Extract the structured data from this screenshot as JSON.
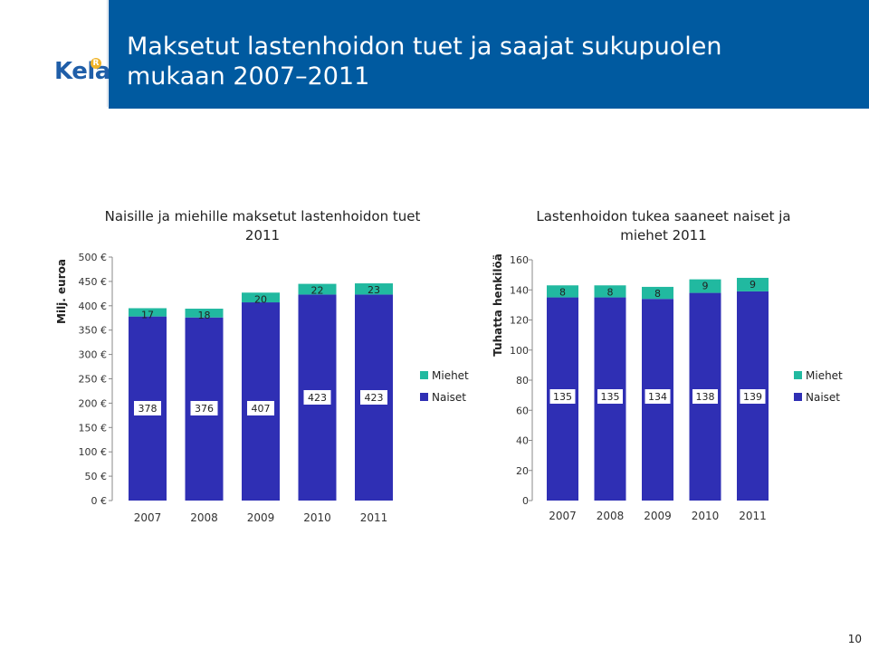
{
  "header": {
    "logo_text": "Kela",
    "logo_mark": "R",
    "title_line1": "Maksetut lastenhoidon tuet ja saajat sukupuolen",
    "title_line2": "mukaan 2007–2011"
  },
  "page_number": "10",
  "colors": {
    "title_bar": "#005aa0",
    "miehet": "#21b9a0",
    "naiset": "#2f2fb4"
  },
  "chart_data": [
    {
      "type": "bar",
      "stacked": true,
      "title_line1": "Naisille ja miehille maksetut lastenhoidon tuet",
      "title_line2": "2011",
      "ylabel": "Milj. euroa",
      "xlabel": "",
      "categories": [
        "2007",
        "2008",
        "2009",
        "2010",
        "2011"
      ],
      "ylim": [
        0,
        500
      ],
      "yticks": [
        0,
        50,
        100,
        150,
        200,
        250,
        300,
        350,
        400,
        450,
        500
      ],
      "ytick_labels": [
        "0 €",
        "50 €",
        "100 €",
        "150 €",
        "200 €",
        "250 €",
        "300 €",
        "350 €",
        "400 €",
        "450 €",
        "500 €"
      ],
      "series": [
        {
          "name": "Naiset",
          "values": [
            378,
            376,
            407,
            423,
            423
          ]
        },
        {
          "name": "Miehet",
          "values": [
            17,
            18,
            20,
            22,
            23
          ]
        }
      ],
      "legend": [
        "Miehet",
        "Naiset"
      ],
      "legend_position": "right",
      "grid": false
    },
    {
      "type": "bar",
      "stacked": true,
      "title_line1": "Lastenhoidon tukea saaneet naiset ja",
      "title_line2": "miehet 2011",
      "ylabel": "Tuhatta henkilöä",
      "xlabel": "",
      "categories": [
        "2007",
        "2008",
        "2009",
        "2010",
        "2011"
      ],
      "ylim": [
        0,
        160
      ],
      "yticks": [
        0,
        20,
        40,
        60,
        80,
        100,
        120,
        140,
        160
      ],
      "ytick_labels": [
        "0",
        "20",
        "40",
        "60",
        "80",
        "100",
        "120",
        "140",
        "160"
      ],
      "series": [
        {
          "name": "Naiset",
          "values": [
            135,
            135,
            134,
            138,
            139
          ]
        },
        {
          "name": "Miehet",
          "values": [
            8,
            8,
            8,
            9,
            9
          ]
        }
      ],
      "legend": [
        "Miehet",
        "Naiset"
      ],
      "legend_position": "right",
      "grid": false
    }
  ]
}
